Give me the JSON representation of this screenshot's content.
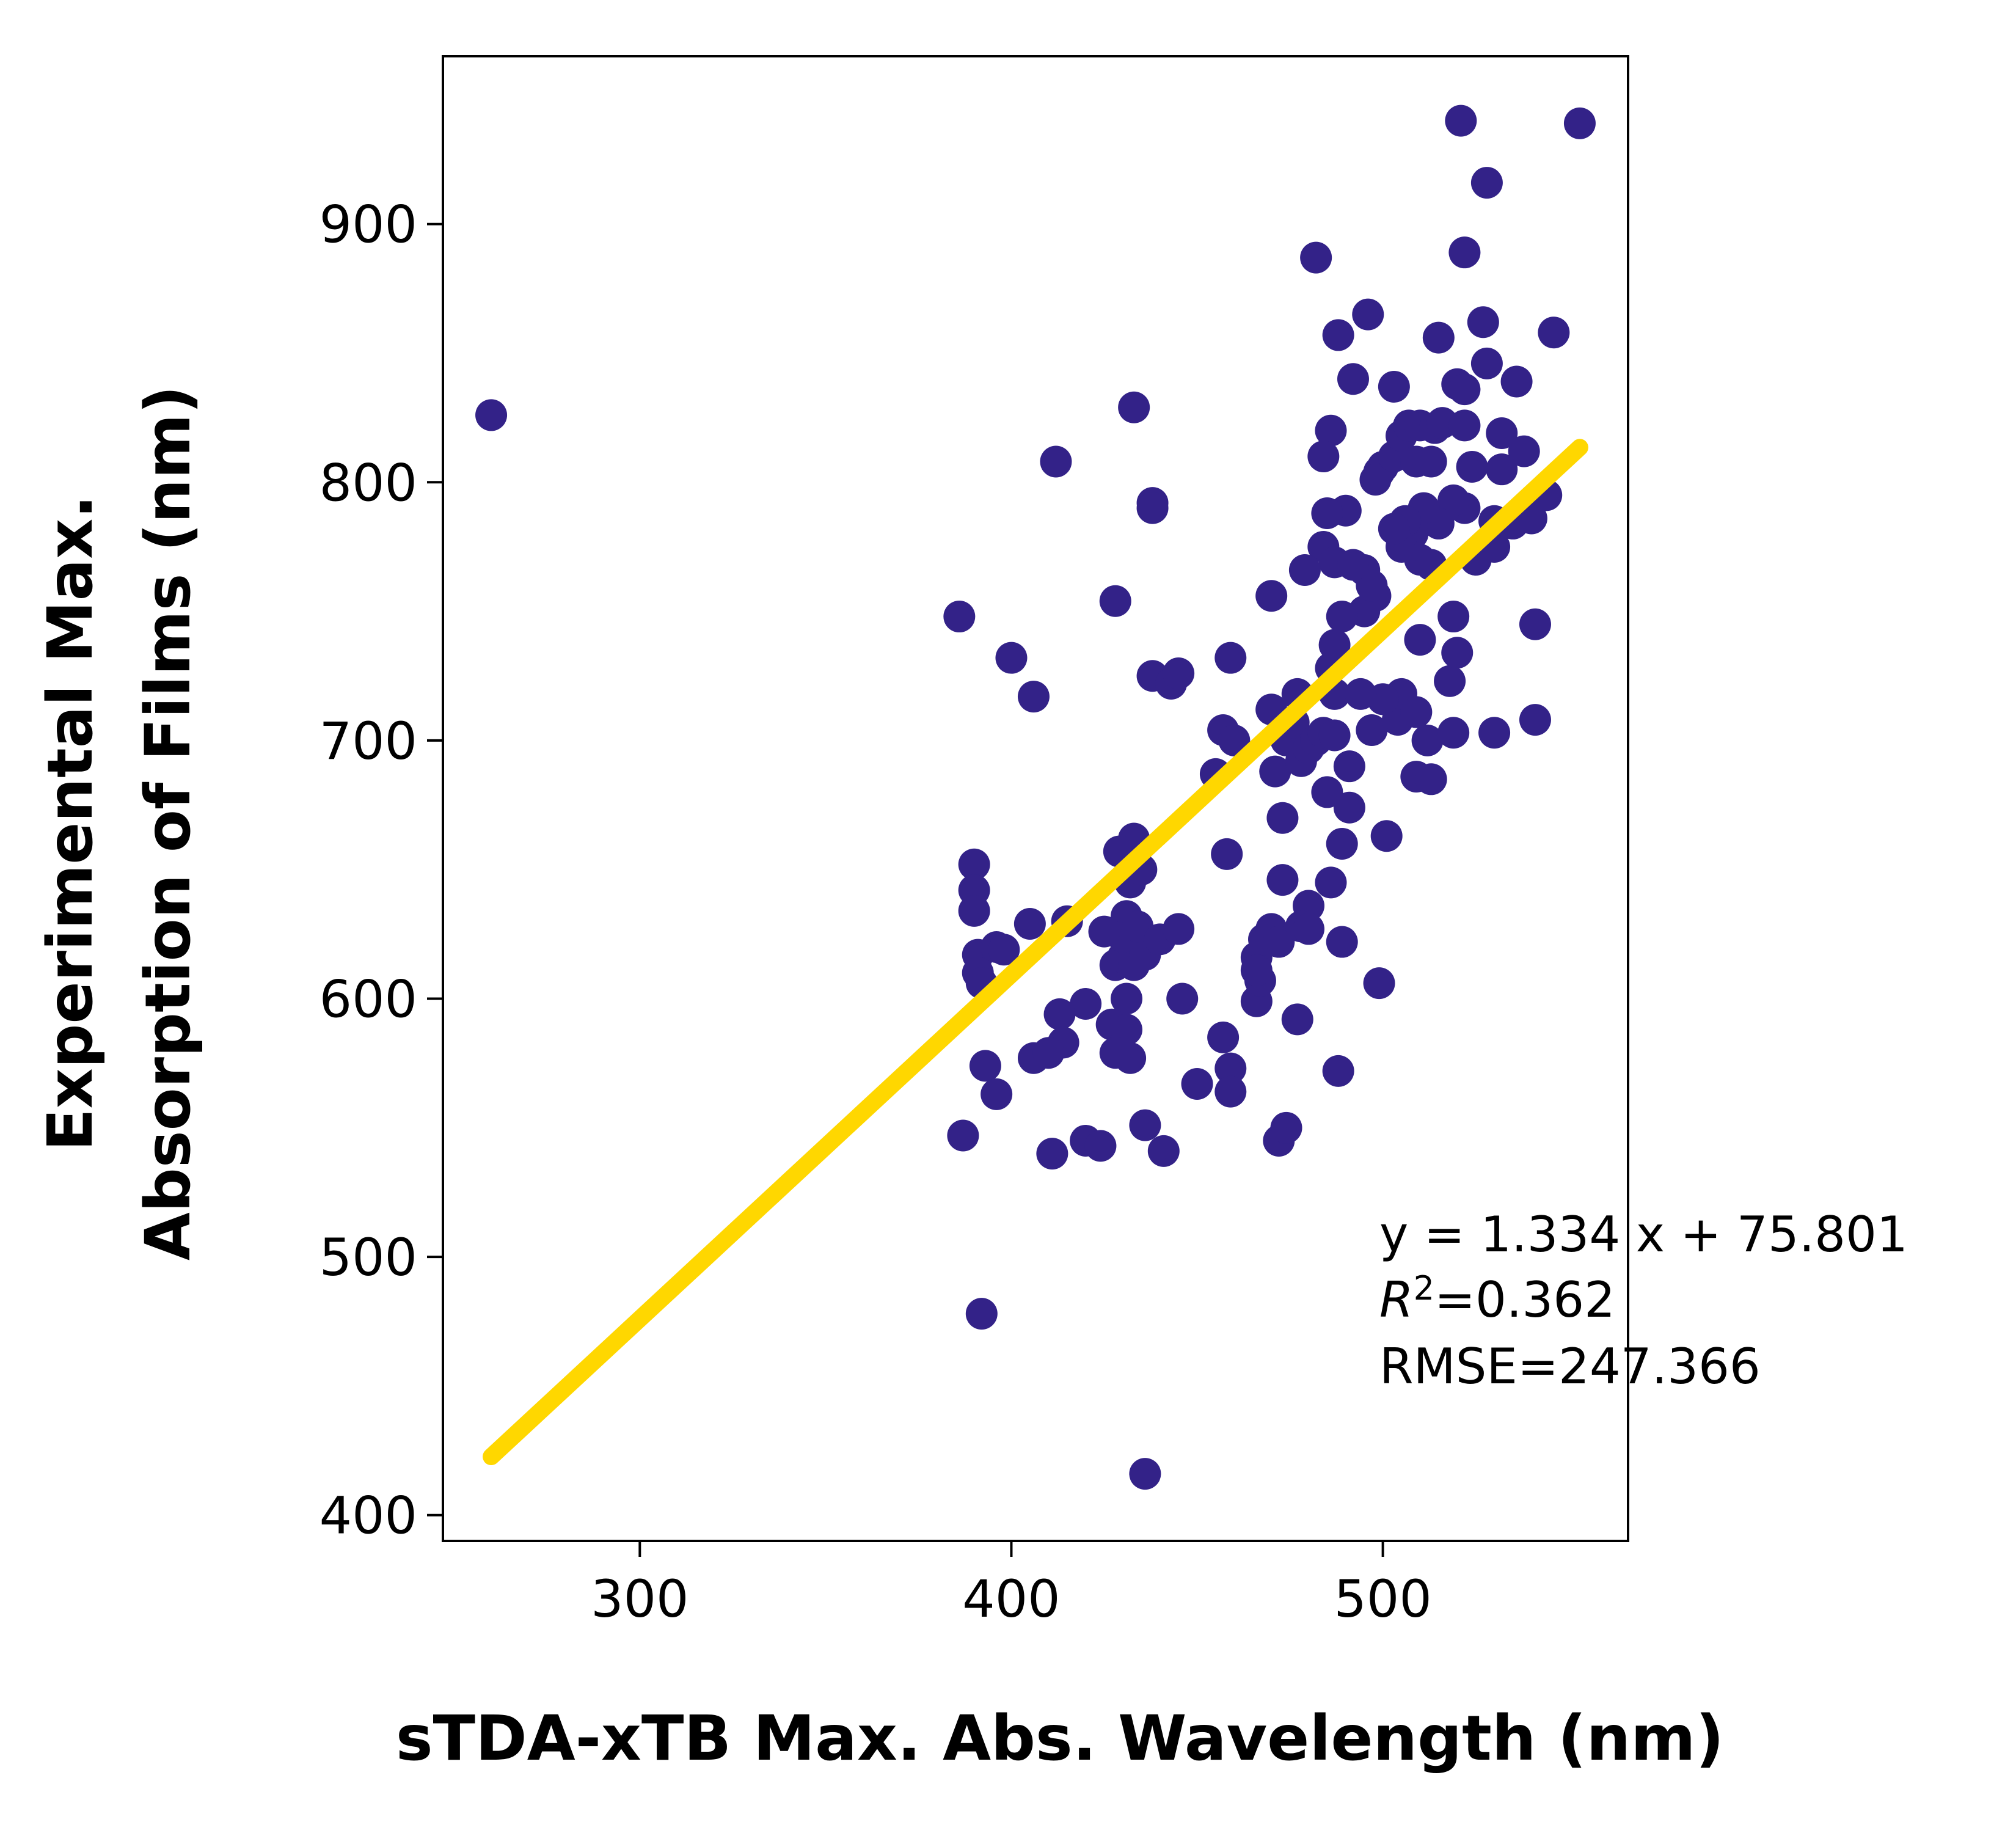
{
  "chart_data": {
    "type": "scatter",
    "title": "",
    "xlabel": "sTDA-xTB Max. Abs. Wavelength (nm)",
    "ylabel_lines": [
      "Experimental Max.",
      "Absorption of Films (nm)"
    ],
    "xlim": [
      247,
      566
    ],
    "ylim": [
      390,
      965
    ],
    "x_ticks": [
      300,
      400,
      500
    ],
    "y_ticks": [
      400,
      500,
      600,
      700,
      800,
      900
    ],
    "grid": false,
    "colors": {
      "points": "#332288",
      "fit_line": "#FFD700"
    },
    "points": [
      [
        260,
        826
      ],
      [
        412,
        808
      ],
      [
        433,
        829
      ],
      [
        438,
        792
      ],
      [
        438,
        790
      ],
      [
        386,
        748
      ],
      [
        400,
        732
      ],
      [
        406,
        717
      ],
      [
        428,
        754
      ],
      [
        438,
        725
      ],
      [
        443,
        722
      ],
      [
        445,
        726
      ],
      [
        390,
        652
      ],
      [
        390,
        642
      ],
      [
        390,
        634
      ],
      [
        391,
        617
      ],
      [
        391,
        610
      ],
      [
        392,
        606
      ],
      [
        396,
        620
      ],
      [
        398,
        619
      ],
      [
        405,
        629
      ],
      [
        415,
        630
      ],
      [
        420,
        598
      ],
      [
        413,
        594
      ],
      [
        414,
        583
      ],
      [
        406,
        577
      ],
      [
        410,
        579
      ],
      [
        428,
        613
      ],
      [
        430,
        616
      ],
      [
        433,
        613
      ],
      [
        436,
        617
      ],
      [
        431,
        600
      ],
      [
        431,
        632
      ],
      [
        432,
        645
      ],
      [
        433,
        662
      ],
      [
        429,
        657
      ],
      [
        435,
        650
      ],
      [
        430,
        624
      ],
      [
        434,
        628
      ],
      [
        440,
        623
      ],
      [
        445,
        627
      ],
      [
        425,
        626
      ],
      [
        427,
        590
      ],
      [
        431,
        588
      ],
      [
        432,
        577
      ],
      [
        428,
        579
      ],
      [
        446,
        600
      ],
      [
        457,
        585
      ],
      [
        459,
        573
      ],
      [
        459,
        564
      ],
      [
        450,
        567
      ],
      [
        393,
        574
      ],
      [
        396,
        563
      ],
      [
        387,
        547
      ],
      [
        411,
        540
      ],
      [
        420,
        545
      ],
      [
        424,
        543
      ],
      [
        436,
        551
      ],
      [
        441,
        541
      ],
      [
        392,
        478
      ],
      [
        436,
        416
      ],
      [
        455,
        687
      ],
      [
        457,
        704
      ],
      [
        460,
        700
      ],
      [
        458,
        656
      ],
      [
        459,
        732
      ],
      [
        466,
        599
      ],
      [
        467,
        607
      ],
      [
        466,
        616
      ],
      [
        468,
        623
      ],
      [
        470,
        627
      ],
      [
        472,
        622
      ],
      [
        466,
        611
      ],
      [
        473,
        646
      ],
      [
        473,
        670
      ],
      [
        471,
        688
      ],
      [
        470,
        712
      ],
      [
        474,
        700
      ],
      [
        476,
        707
      ],
      [
        477,
        718
      ],
      [
        478,
        692
      ],
      [
        480,
        697
      ],
      [
        482,
        700
      ],
      [
        484,
        703
      ],
      [
        485,
        680
      ],
      [
        487,
        702
      ],
      [
        489,
        660
      ],
      [
        491,
        674
      ],
      [
        491,
        690
      ],
      [
        486,
        645
      ],
      [
        480,
        636
      ],
      [
        478,
        628
      ],
      [
        480,
        627
      ],
      [
        477,
        592
      ],
      [
        472,
        545
      ],
      [
        474,
        550
      ],
      [
        488,
        572
      ],
      [
        489,
        622
      ],
      [
        499,
        606
      ],
      [
        501,
        663
      ],
      [
        504,
        708
      ],
      [
        505,
        718
      ],
      [
        500,
        716
      ],
      [
        509,
        711
      ],
      [
        509,
        686
      ],
      [
        513,
        685
      ],
      [
        512,
        700
      ],
      [
        519,
        703
      ],
      [
        530,
        703
      ],
      [
        541,
        708
      ],
      [
        541,
        745
      ],
      [
        518,
        723
      ],
      [
        520,
        734
      ],
      [
        519,
        748
      ],
      [
        510,
        739
      ],
      [
        487,
        718
      ],
      [
        494,
        718
      ],
      [
        497,
        704
      ],
      [
        495,
        750
      ],
      [
        498,
        756
      ],
      [
        495,
        766
      ],
      [
        497,
        760
      ],
      [
        500,
        806
      ],
      [
        499,
        804
      ],
      [
        498,
        801
      ],
      [
        503,
        810
      ],
      [
        505,
        818
      ],
      [
        507,
        822
      ],
      [
        510,
        822
      ],
      [
        509,
        808
      ],
      [
        514,
        821
      ],
      [
        516,
        823
      ],
      [
        522,
        822
      ],
      [
        520,
        838
      ],
      [
        522,
        836
      ],
      [
        522,
        790
      ],
      [
        519,
        793
      ],
      [
        513,
        808
      ],
      [
        515,
        784
      ],
      [
        511,
        790
      ],
      [
        508,
        780
      ],
      [
        506,
        785
      ],
      [
        505,
        775
      ],
      [
        503,
        782
      ],
      [
        510,
        770
      ],
      [
        513,
        768
      ],
      [
        525,
        770
      ],
      [
        530,
        775
      ],
      [
        530,
        785
      ],
      [
        535,
        784
      ],
      [
        540,
        786
      ],
      [
        544,
        795
      ],
      [
        532,
        819
      ],
      [
        532,
        805
      ],
      [
        538,
        812
      ],
      [
        524,
        806
      ],
      [
        515,
        856
      ],
      [
        527,
        862
      ],
      [
        528,
        846
      ],
      [
        536,
        839
      ],
      [
        546,
        858
      ],
      [
        496,
        865
      ],
      [
        488,
        857
      ],
      [
        482,
        887
      ],
      [
        486,
        820
      ],
      [
        490,
        789
      ],
      [
        485,
        788
      ],
      [
        492,
        840
      ],
      [
        503,
        837
      ],
      [
        484,
        810
      ],
      [
        484,
        775
      ],
      [
        487,
        769
      ],
      [
        492,
        768
      ],
      [
        470,
        756
      ],
      [
        479,
        766
      ],
      [
        489,
        748
      ],
      [
        487,
        737
      ],
      [
        486,
        728
      ],
      [
        521,
        940
      ],
      [
        553,
        939
      ],
      [
        528,
        916
      ],
      [
        522,
        889
      ]
    ],
    "fit": {
      "slope": 1.334,
      "intercept": 75.801,
      "x_range": [
        260,
        553
      ]
    },
    "annotation_lines": [
      "y = 1.334 x + 75.801",
      "=0.362",
      "RMSE=247.366"
    ],
    "annotation_r2_base": "R",
    "annotation_r2_sup": "2"
  }
}
